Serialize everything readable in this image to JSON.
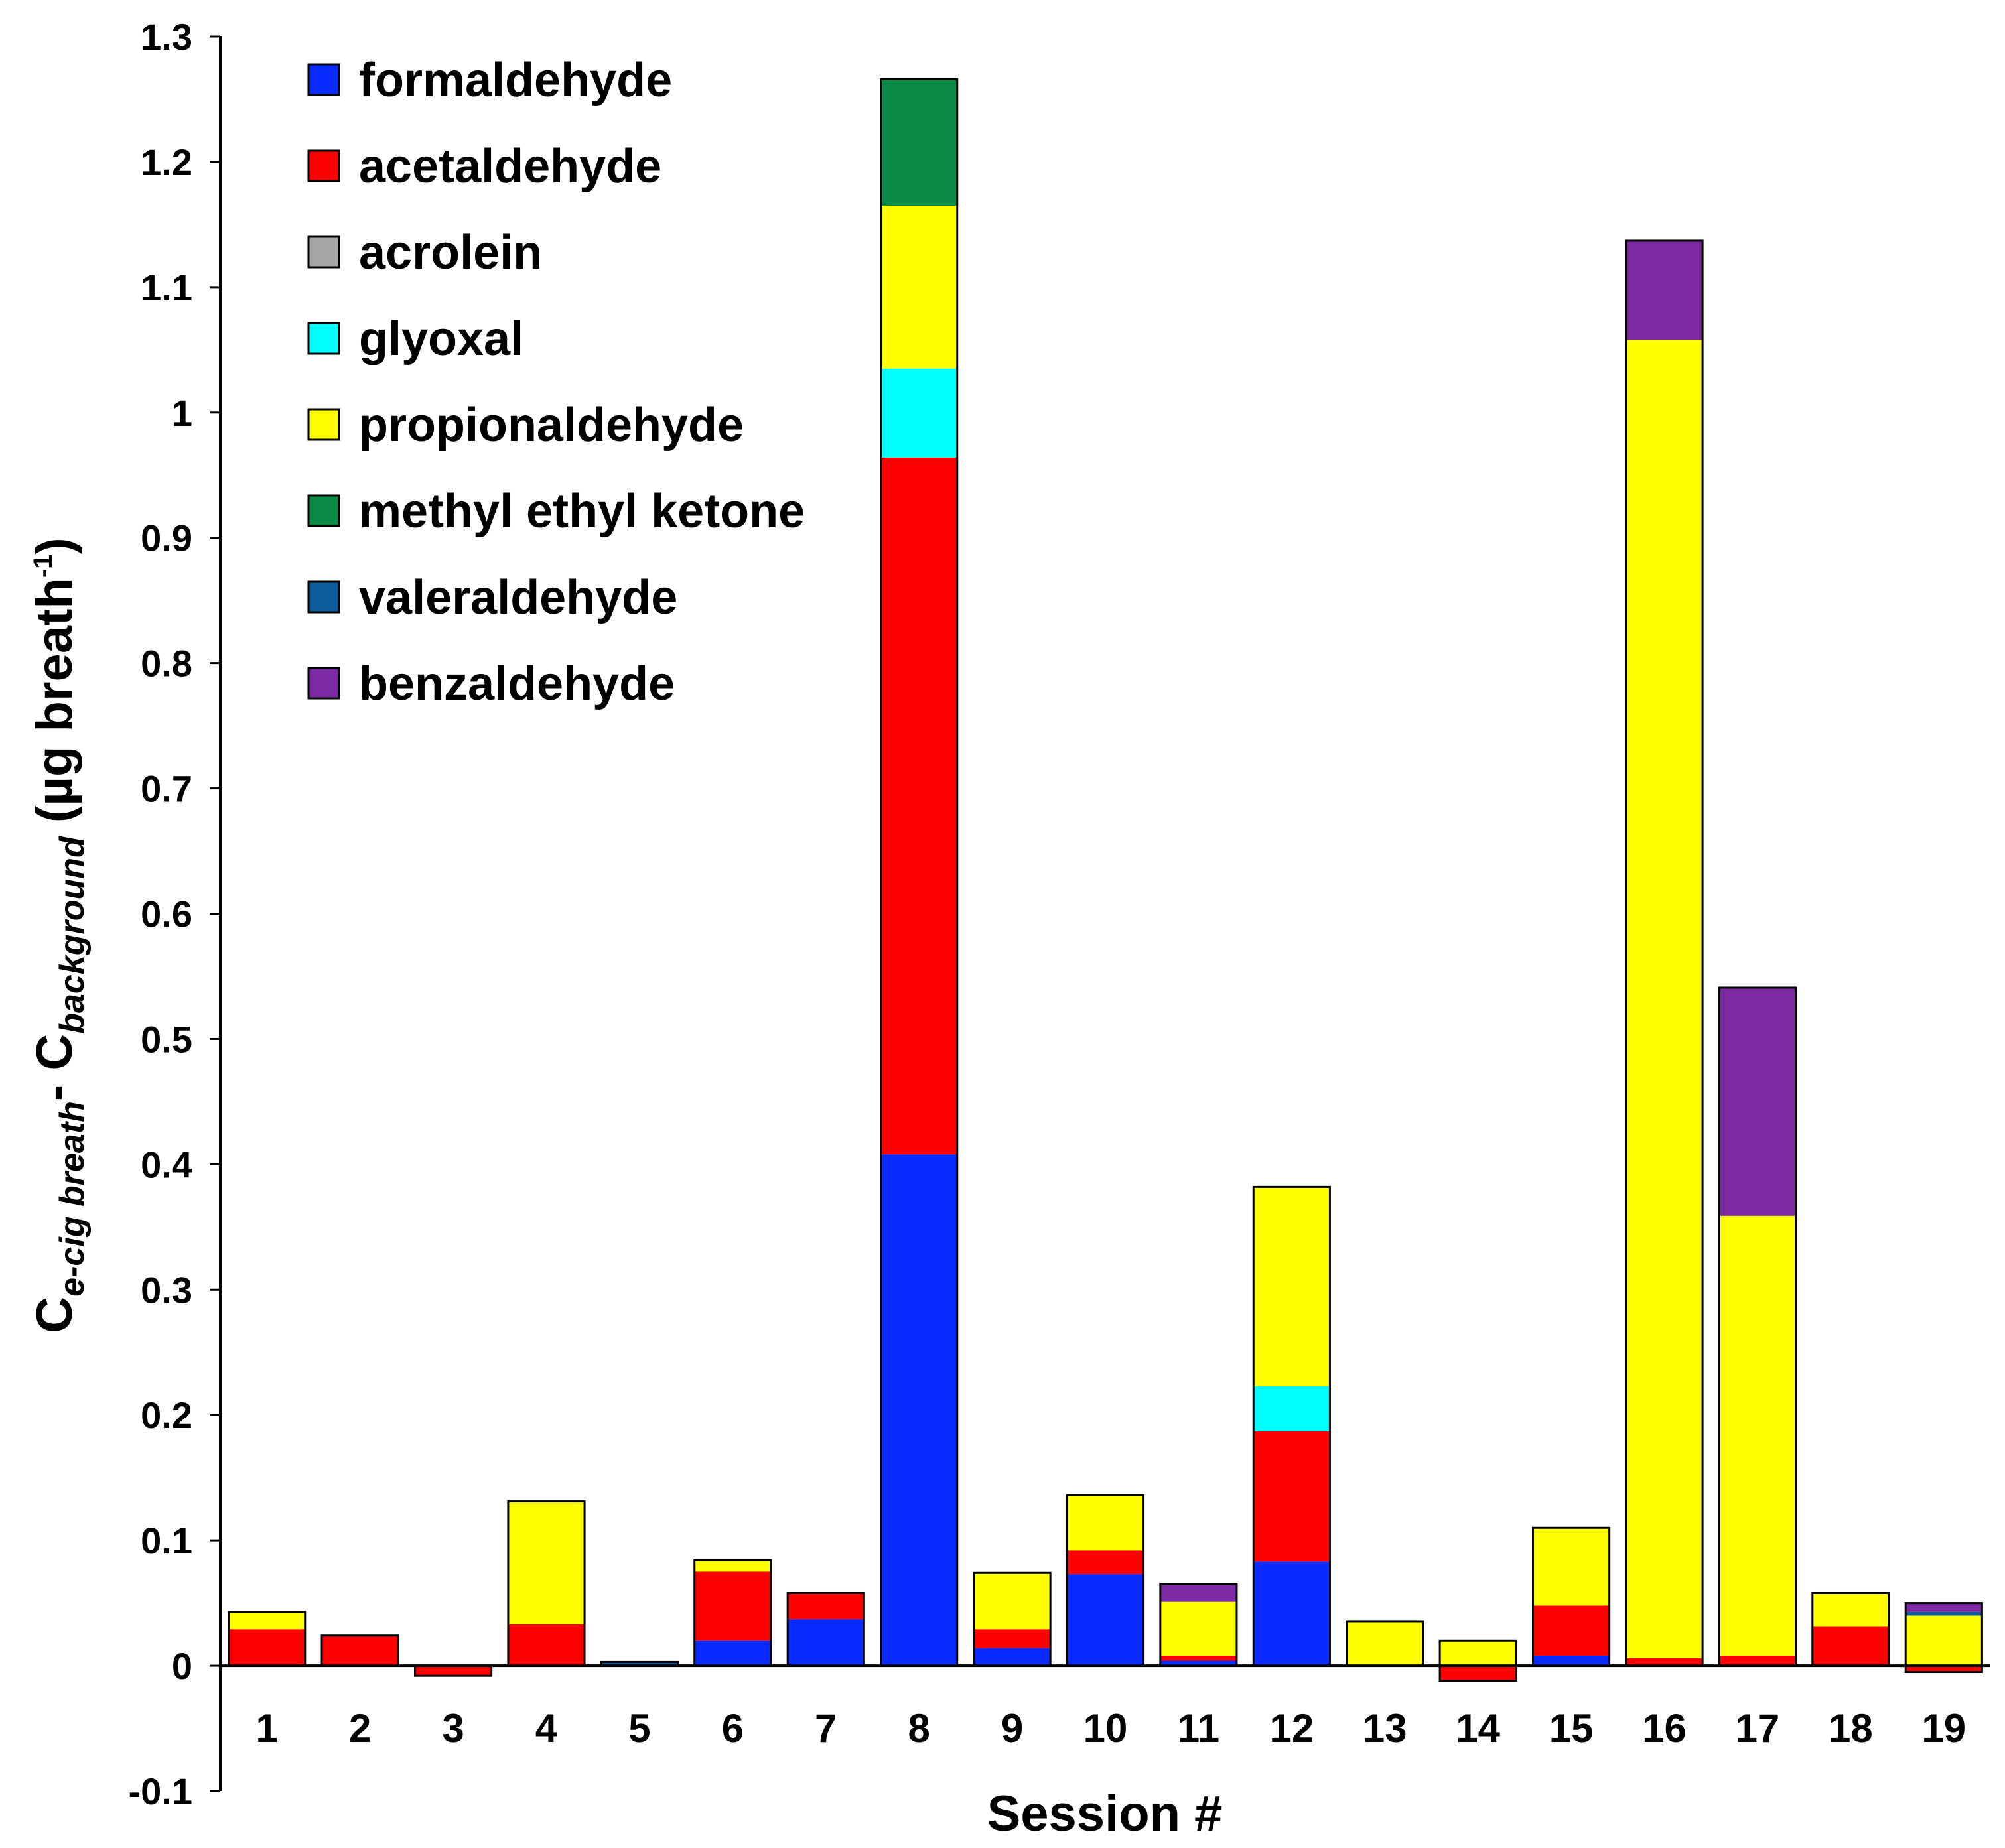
{
  "chart_data": {
    "type": "bar",
    "stacked": true,
    "xlabel": "Session #",
    "ylabel": {
      "c1": "C",
      "sub1": "e-cig breath",
      "minus": "- C",
      "sub2": "background",
      "unit_open": " (µg breath",
      "unit_exp": "-1",
      "unit_close": ")"
    },
    "ylim": [
      -0.1,
      1.3
    ],
    "yticks": [
      -0.1,
      0,
      0.1,
      0.2,
      0.3,
      0.4,
      0.5,
      0.6,
      0.7,
      0.8,
      0.9,
      1,
      1.1,
      1.2,
      1.3
    ],
    "ytick_labels": [
      "-0.1",
      "0",
      "0.1",
      "0.2",
      "0.3",
      "0.4",
      "0.5",
      "0.6",
      "0.7",
      "0.8",
      "0.9",
      "1",
      "1.1",
      "1.2",
      "1.3"
    ],
    "categories": [
      "1",
      "2",
      "3",
      "4",
      "5",
      "6",
      "7",
      "8",
      "9",
      "10",
      "11",
      "12",
      "13",
      "14",
      "15",
      "16",
      "17",
      "18",
      "19"
    ],
    "legend_position": "top-left",
    "series": [
      {
        "name": "formaldehyde",
        "color": "#0a2bff",
        "values": [
          0,
          0,
          0,
          0,
          0,
          0.02,
          0.037,
          0.408,
          0.014,
          0.073,
          0.004,
          0.083,
          0,
          0,
          0.008,
          0,
          0,
          0,
          0
        ]
      },
      {
        "name": "acetaldehyde",
        "color": "#ff0000",
        "values": [
          0.029,
          0.024,
          -0.008,
          0.033,
          0,
          0.055,
          0.021,
          0.556,
          0.015,
          0.019,
          0.004,
          0.104,
          0,
          -0.012,
          0.04,
          0.006,
          0.008,
          0.031,
          -0.005
        ]
      },
      {
        "name": "acrolein",
        "color": "#a6a6a6",
        "values": [
          0,
          0,
          0,
          0,
          0,
          0,
          0,
          0,
          0,
          0,
          0,
          0,
          0,
          0,
          0,
          0,
          0,
          0,
          0
        ]
      },
      {
        "name": "glyoxal",
        "color": "#00ffff",
        "values": [
          0,
          0,
          0,
          0,
          0,
          0,
          0,
          0.071,
          0,
          0,
          0,
          0.036,
          0,
          0,
          0,
          0,
          0,
          0,
          0
        ]
      },
      {
        "name": "propionaldehyde",
        "color": "#ffff00",
        "values": [
          0.014,
          0,
          0,
          0.098,
          0,
          0.009,
          0,
          0.13,
          0.045,
          0.044,
          0.043,
          0.159,
          0.035,
          0.02,
          0.062,
          1.052,
          0.351,
          0.027,
          0.04
        ]
      },
      {
        "name": "methyl ethyl ketone",
        "color": "#0a8a45",
        "values": [
          0,
          0,
          0,
          0,
          0,
          0,
          0,
          0.101,
          0,
          0,
          0,
          0,
          0,
          0,
          0,
          0,
          0,
          0,
          0
        ]
      },
      {
        "name": "valeraldehyde",
        "color": "#0b5c99",
        "values": [
          0,
          0,
          0,
          0,
          0.003,
          0,
          0,
          0,
          0,
          0,
          0,
          0,
          0,
          0,
          0,
          0,
          0,
          0,
          0.003
        ]
      },
      {
        "name": "benzaldehyde",
        "color": "#7b2aa3",
        "values": [
          0,
          0,
          0,
          0,
          0,
          0,
          0,
          0,
          0,
          0,
          0.014,
          0,
          0,
          0,
          0,
          0.079,
          0.182,
          0,
          0.007
        ]
      }
    ]
  }
}
